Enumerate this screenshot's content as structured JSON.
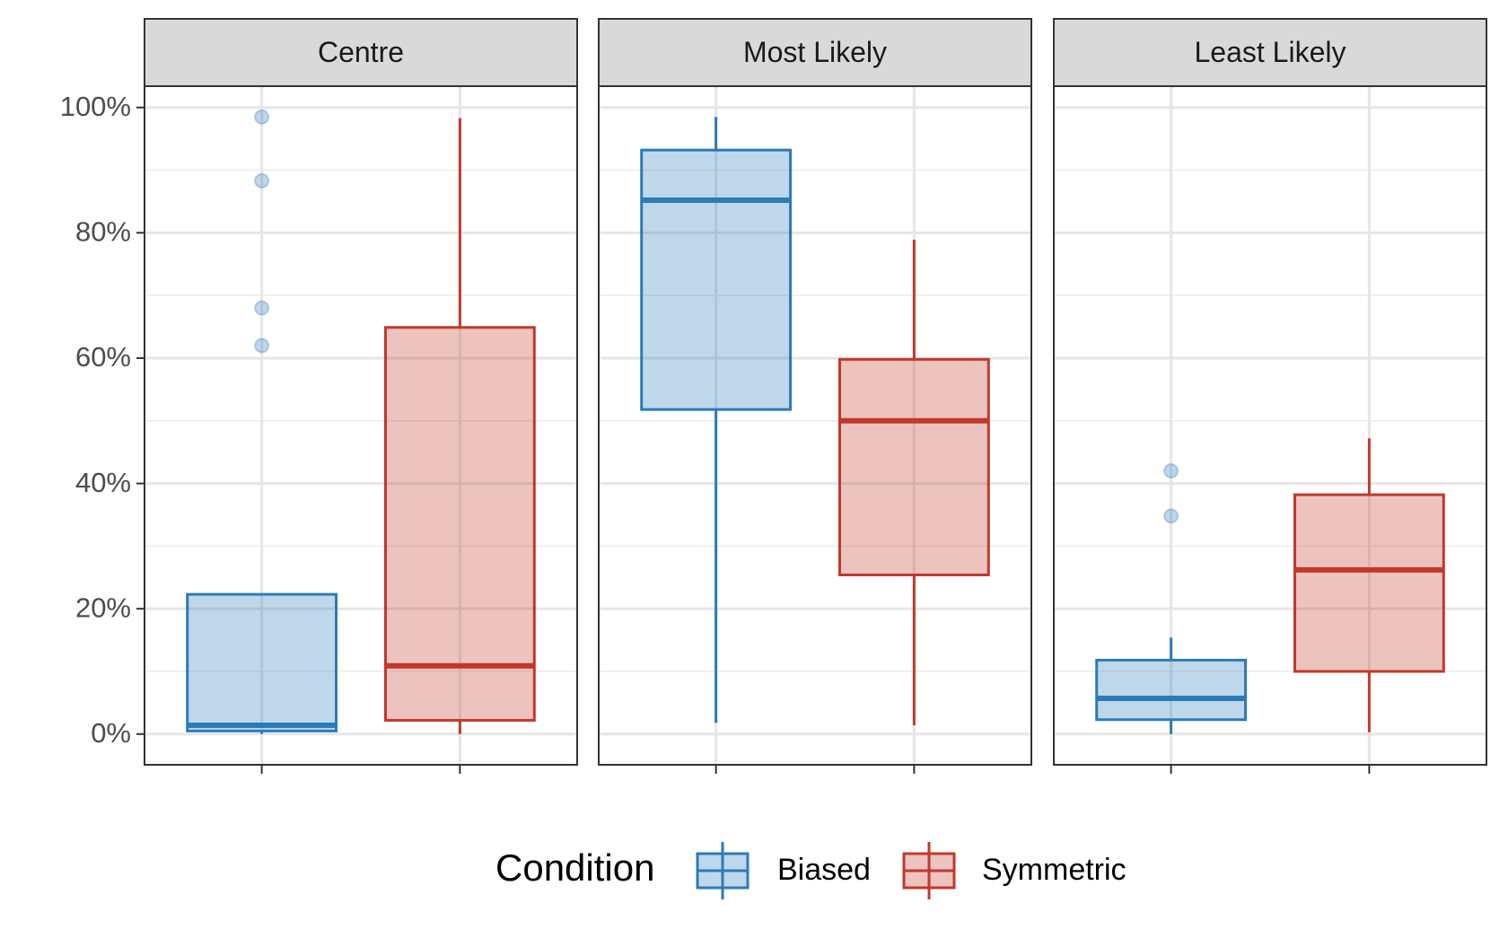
{
  "chart_data": {
    "type": "box",
    "legend_title": "Condition",
    "series": [
      {
        "name": "Biased",
        "color": "#2b7bba"
      },
      {
        "name": "Symmetric",
        "color": "#c0392b"
      }
    ],
    "facets": [
      {
        "label": "Centre",
        "boxes": [
          {
            "min": 0,
            "q1": 0.5,
            "median": 1.4,
            "q3": 22.3,
            "max": 22.3,
            "outliers": [
              98.5,
              88.3,
              68,
              62
            ]
          },
          {
            "min": 0,
            "q1": 2.2,
            "median": 10.9,
            "q3": 64.9,
            "max": 98.3,
            "outliers": []
          }
        ]
      },
      {
        "label": "Most Likely",
        "boxes": [
          {
            "min": 1.8,
            "q1": 51.8,
            "median": 85.2,
            "q3": 93.2,
            "max": 98.5,
            "outliers": []
          },
          {
            "min": 1.4,
            "q1": 25.4,
            "median": 50,
            "q3": 59.8,
            "max": 78.9,
            "outliers": []
          }
        ]
      },
      {
        "label": "Least Likely",
        "boxes": [
          {
            "min": 0,
            "q1": 2.3,
            "median": 5.7,
            "q3": 11.8,
            "max": 15.4,
            "outliers": [
              42,
              34.8
            ]
          },
          {
            "min": 0.3,
            "q1": 10,
            "median": 26.2,
            "q3": 38.2,
            "max": 47.2,
            "outliers": []
          }
        ]
      }
    ],
    "ylim": [
      -4.9,
      103.4
    ],
    "yticks": [
      {
        "value": 0,
        "label": "0%"
      },
      {
        "value": 20,
        "label": "20%"
      },
      {
        "value": 40,
        "label": "40%"
      },
      {
        "value": 60,
        "label": "60%"
      },
      {
        "value": 80,
        "label": "80%"
      },
      {
        "value": 100,
        "label": "100%"
      }
    ],
    "minor_yticks": [
      10,
      30,
      50,
      70,
      90
    ],
    "grid": true,
    "legend_position": "bottom"
  }
}
